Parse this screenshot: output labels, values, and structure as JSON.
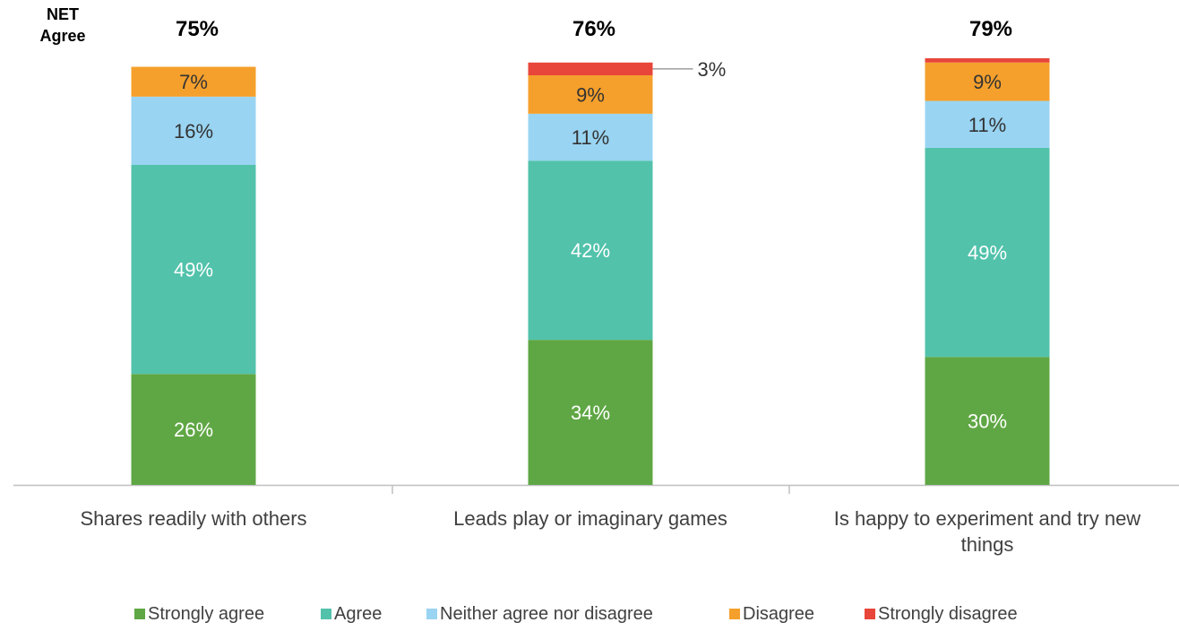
{
  "net_label_line1": "NET",
  "net_label_line2": "Agree",
  "colors": {
    "strongly_agree": "#5fa744",
    "agree": "#52c2ab",
    "neither": "#99d4f2",
    "disagree": "#f5a02c",
    "strongly_disagree": "#e8463a",
    "axis": "#bfbfbf",
    "leader": "#8c8c8c"
  },
  "chart_data": {
    "type": "bar",
    "stacked": true,
    "categories": [
      "Shares readily with others",
      "Leads play or imaginary games",
      "Is happy to experiment and try new things"
    ],
    "net_agree": [
      "75%",
      "76%",
      "79%"
    ],
    "series": [
      {
        "name": "Strongly agree",
        "values": [
          26,
          34,
          30
        ],
        "labels": [
          "26%",
          "34%",
          "30%"
        ]
      },
      {
        "name": "Agree",
        "values": [
          49,
          42,
          49
        ],
        "labels": [
          "49%",
          "42%",
          "49%"
        ]
      },
      {
        "name": "Neither agree nor disagree",
        "values": [
          16,
          11,
          11
        ],
        "labels": [
          "16%",
          "11%",
          "11%"
        ]
      },
      {
        "name": "Disagree",
        "values": [
          7,
          9,
          9
        ],
        "labels": [
          "7%",
          "9%",
          "9%"
        ]
      },
      {
        "name": "Strongly disagree",
        "values": [
          0,
          3,
          1
        ],
        "labels": [
          "",
          "3%",
          ""
        ]
      }
    ],
    "ylim": [
      0,
      100
    ],
    "grid": false,
    "legend_position": "bottom"
  }
}
